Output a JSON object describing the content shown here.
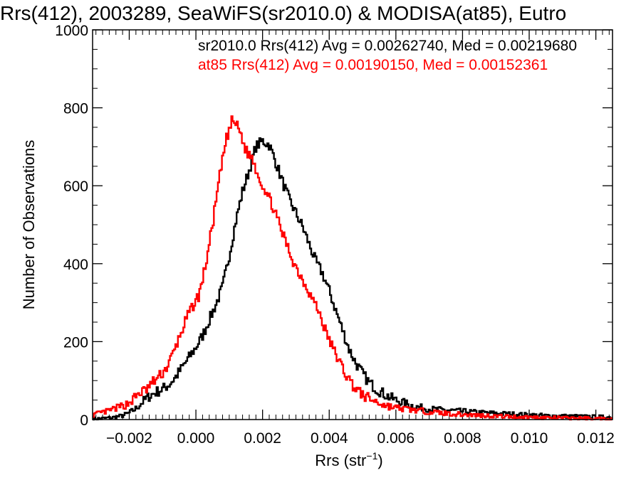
{
  "chart_data": {
    "type": "line",
    "title": "Rrs(412), 2003289, SeaWiFS(sr2010.0) & MODISA(at85), Eutro",
    "xlabel": "Rrs (str",
    "xlabel_sup": "−1",
    "xlabel_close": ")",
    "ylabel": "Number of Observations",
    "xlim": [
      -0.0031,
      0.0125
    ],
    "ylim": [
      0,
      1000
    ],
    "xticks": [
      -0.002,
      0.0,
      0.002,
      0.004,
      0.006,
      0.008,
      0.01,
      0.012
    ],
    "xtick_labels": [
      "−0.002",
      "0.000",
      "0.002",
      "0.004",
      "0.006",
      "0.008",
      "0.010",
      "0.012"
    ],
    "yticks": [
      0,
      200,
      400,
      600,
      800,
      1000
    ],
    "ytick_labels": [
      "0",
      "200",
      "400",
      "600",
      "800",
      "1000"
    ],
    "grid": false,
    "series": [
      {
        "name": "sr2010.0",
        "color": "#000000",
        "annotation": "sr2010.0 Rrs(412) Avg = 0.00262740, Med = 0.00219680",
        "points": [
          [
            -0.0031,
            2
          ],
          [
            -0.0028,
            3
          ],
          [
            -0.0025,
            5
          ],
          [
            -0.0022,
            10
          ],
          [
            -0.002,
            17
          ],
          [
            -0.0018,
            28
          ],
          [
            -0.0016,
            45
          ],
          [
            -0.0014,
            60
          ],
          [
            -0.0012,
            70
          ],
          [
            -0.001,
            78
          ],
          [
            -0.0008,
            90
          ],
          [
            -0.0006,
            110
          ],
          [
            -0.0004,
            135
          ],
          [
            -0.0002,
            160
          ],
          [
            0.0,
            185
          ],
          [
            0.0002,
            215
          ],
          [
            0.0004,
            255
          ],
          [
            0.0006,
            295
          ],
          [
            0.0008,
            340
          ],
          [
            0.001,
            420
          ],
          [
            0.0012,
            510
          ],
          [
            0.0014,
            585
          ],
          [
            0.0016,
            640
          ],
          [
            0.0018,
            700
          ],
          [
            0.002,
            715
          ],
          [
            0.0022,
            705
          ],
          [
            0.0024,
            660
          ],
          [
            0.0026,
            610
          ],
          [
            0.0028,
            565
          ],
          [
            0.003,
            530
          ],
          [
            0.0032,
            495
          ],
          [
            0.0034,
            450
          ],
          [
            0.0036,
            405
          ],
          [
            0.0038,
            375
          ],
          [
            0.004,
            330
          ],
          [
            0.0042,
            280
          ],
          [
            0.0044,
            230
          ],
          [
            0.0046,
            180
          ],
          [
            0.0048,
            145
          ],
          [
            0.005,
            118
          ],
          [
            0.0052,
            95
          ],
          [
            0.0054,
            80
          ],
          [
            0.0056,
            68
          ],
          [
            0.0058,
            58
          ],
          [
            0.006,
            50
          ],
          [
            0.0062,
            44
          ],
          [
            0.0064,
            38
          ],
          [
            0.0066,
            33
          ],
          [
            0.0068,
            30
          ],
          [
            0.007,
            27
          ],
          [
            0.0075,
            24
          ],
          [
            0.008,
            21
          ],
          [
            0.0085,
            18
          ],
          [
            0.009,
            16
          ],
          [
            0.0095,
            14
          ],
          [
            0.01,
            12
          ],
          [
            0.0105,
            10
          ],
          [
            0.011,
            9
          ],
          [
            0.0115,
            8
          ],
          [
            0.012,
            7
          ],
          [
            0.0125,
            6
          ]
        ],
        "noise": 14,
        "seed": 7
      },
      {
        "name": "at85",
        "color": "#ff0000",
        "annotation": "at85 Rrs(412) Avg = 0.00190150, Med = 0.00152361",
        "points": [
          [
            -0.0031,
            12
          ],
          [
            -0.0029,
            16
          ],
          [
            -0.0027,
            20
          ],
          [
            -0.0025,
            26
          ],
          [
            -0.0023,
            32
          ],
          [
            -0.0021,
            38
          ],
          [
            -0.0019,
            50
          ],
          [
            -0.0017,
            68
          ],
          [
            -0.0015,
            75
          ],
          [
            -0.0013,
            95
          ],
          [
            -0.0011,
            110
          ],
          [
            -0.0009,
            130
          ],
          [
            -0.0007,
            165
          ],
          [
            -0.0005,
            210
          ],
          [
            -0.0003,
            255
          ],
          [
            -0.0001,
            290
          ],
          [
            0.0001,
            320
          ],
          [
            0.0003,
            400
          ],
          [
            0.0005,
            500
          ],
          [
            0.0007,
            615
          ],
          [
            0.0009,
            715
          ],
          [
            0.0011,
            770
          ],
          [
            0.0013,
            745
          ],
          [
            0.0015,
            690
          ],
          [
            0.0017,
            670
          ],
          [
            0.0019,
            620
          ],
          [
            0.0021,
            585
          ],
          [
            0.0023,
            550
          ],
          [
            0.0025,
            500
          ],
          [
            0.0027,
            455
          ],
          [
            0.0029,
            410
          ],
          [
            0.0031,
            375
          ],
          [
            0.0033,
            345
          ],
          [
            0.0035,
            310
          ],
          [
            0.0037,
            275
          ],
          [
            0.0039,
            225
          ],
          [
            0.0041,
            185
          ],
          [
            0.0043,
            150
          ],
          [
            0.0045,
            115
          ],
          [
            0.0047,
            90
          ],
          [
            0.0049,
            70
          ],
          [
            0.0051,
            58
          ],
          [
            0.0053,
            50
          ],
          [
            0.0055,
            42
          ],
          [
            0.0057,
            36
          ],
          [
            0.006,
            30
          ],
          [
            0.0065,
            25
          ],
          [
            0.007,
            20
          ],
          [
            0.0075,
            16
          ],
          [
            0.008,
            13
          ],
          [
            0.009,
            9
          ],
          [
            0.01,
            6
          ],
          [
            0.011,
            4
          ],
          [
            0.012,
            3
          ],
          [
            0.0125,
            2
          ]
        ],
        "noise": 14,
        "seed": 13
      }
    ]
  }
}
